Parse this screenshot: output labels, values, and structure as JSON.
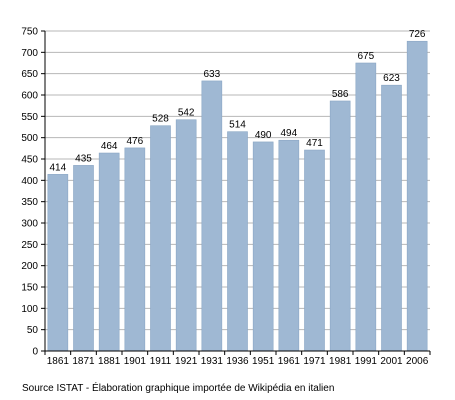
{
  "chart_data": {
    "type": "bar",
    "categories": [
      "1861",
      "1871",
      "1881",
      "1901",
      "1911",
      "1921",
      "1931",
      "1936",
      "1951",
      "1961",
      "1971",
      "1981",
      "1991",
      "2001",
      "2006"
    ],
    "values": [
      414,
      435,
      464,
      476,
      528,
      542,
      633,
      514,
      490,
      494,
      471,
      586,
      675,
      623,
      726
    ],
    "title": "",
    "xlabel": "",
    "ylabel": "",
    "ylim": [
      0,
      750
    ],
    "yticks": [
      0,
      50,
      100,
      150,
      200,
      250,
      300,
      350,
      400,
      450,
      500,
      550,
      600,
      650,
      700,
      750
    ],
    "grid": true,
    "bar_color": "#9fb8d3",
    "bar_edge_color": "#8aa6c4",
    "grid_color": "#b7b7b7",
    "data_labels": true
  },
  "footer": {
    "source": "Source ISTAT - Élaboration graphique importée de Wikipédia en italien"
  }
}
